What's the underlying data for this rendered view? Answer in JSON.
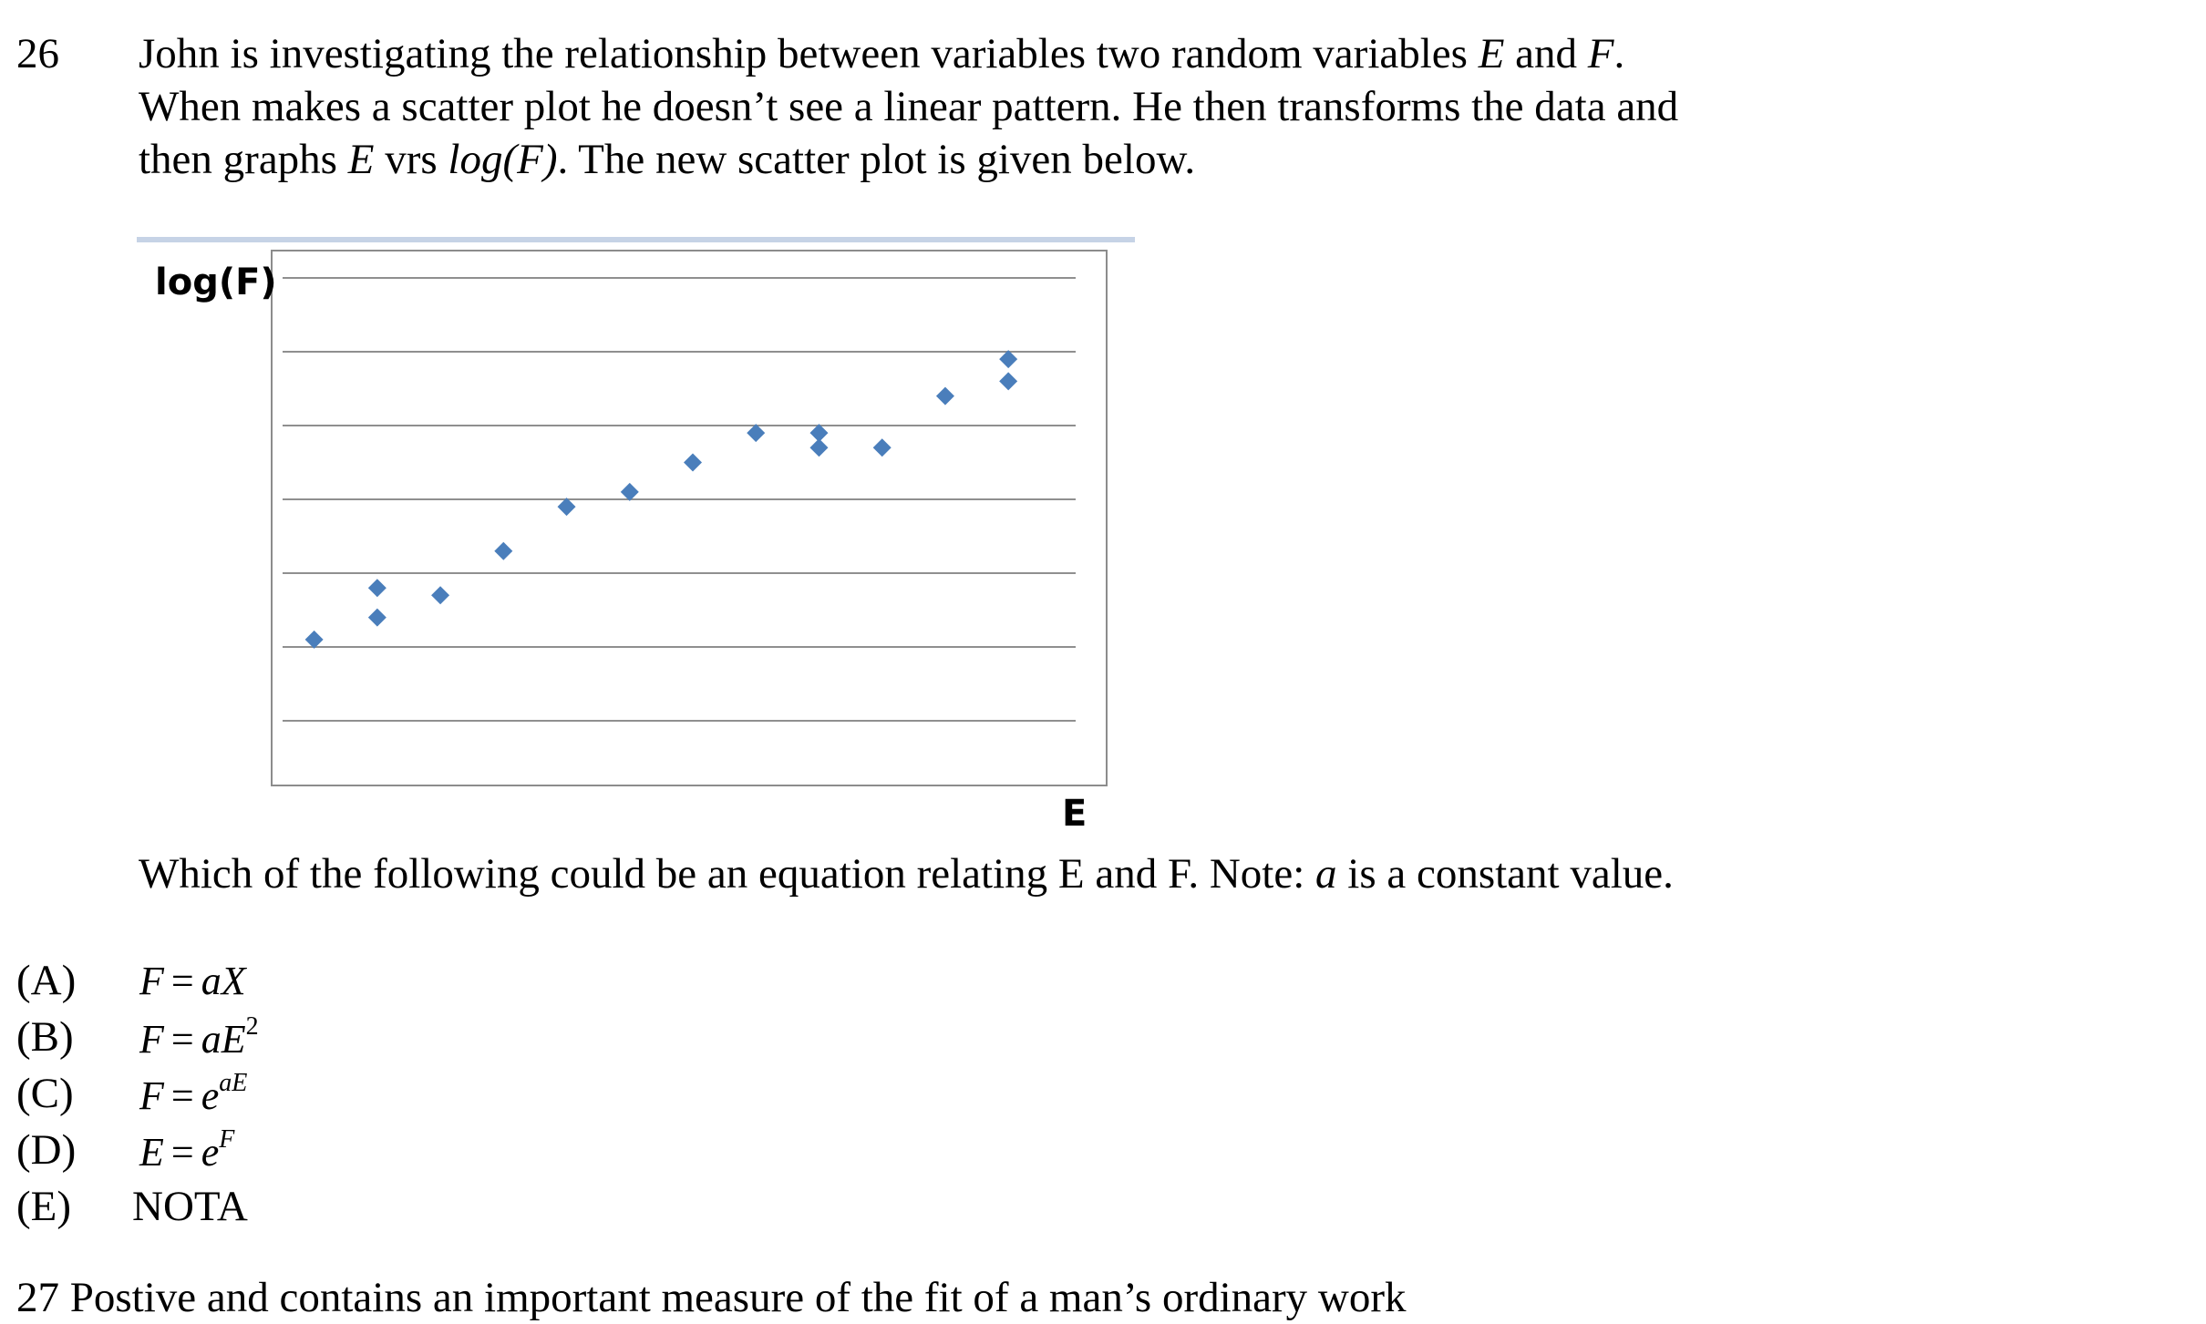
{
  "question": {
    "number": "26",
    "line1_a": "John is investigating the relationship between variables two random variables ",
    "line1_var1": "E",
    "line1_and": " and ",
    "line1_var2": "F",
    "line1_end": ".",
    "line2": "When makes a scatter plot he doesn’t see a linear pattern.  He then transforms the data and",
    "line3_a": "then graphs ",
    "line3_var": "E",
    "line3_vrs": " vrs ",
    "line3_log": "log(F)",
    "line3_end": ".  The new scatter plot is given below."
  },
  "chart_data": {
    "type": "scatter",
    "ylabel": "log(F)",
    "xlabel": "E",
    "grid": "horizontal",
    "gridline_count": 7,
    "xlim": [
      0,
      13
    ],
    "ylim": [
      0,
      7
    ],
    "marker": "diamond",
    "marker_color": "#4a7ebb",
    "points": [
      {
        "x": 0.5,
        "y": 2.1
      },
      {
        "x": 1.5,
        "y": 2.4
      },
      {
        "x": 1.5,
        "y": 2.8
      },
      {
        "x": 2.5,
        "y": 2.7
      },
      {
        "x": 3.5,
        "y": 3.3
      },
      {
        "x": 4.5,
        "y": 3.9
      },
      {
        "x": 5.5,
        "y": 4.1
      },
      {
        "x": 6.5,
        "y": 4.5
      },
      {
        "x": 7.5,
        "y": 4.9
      },
      {
        "x": 8.5,
        "y": 4.9
      },
      {
        "x": 8.5,
        "y": 4.7
      },
      {
        "x": 9.5,
        "y": 4.7
      },
      {
        "x": 10.5,
        "y": 5.4
      },
      {
        "x": 11.5,
        "y": 5.6
      },
      {
        "x": 11.5,
        "y": 5.9
      }
    ]
  },
  "followup": {
    "text_a": "Which of the following could be an equation relating E and F. Note: ",
    "text_var": "a",
    "text_end": " is a constant value."
  },
  "options": [
    {
      "letter": "(A)",
      "lhs": "F",
      "eq": "=",
      "rhs": "aX",
      "sup": ""
    },
    {
      "letter": "(B)",
      "lhs": "F",
      "eq": "=",
      "rhs": "aE",
      "sup": "2"
    },
    {
      "letter": "(C)",
      "lhs": "F",
      "eq": "=",
      "rhs": "e",
      "sup": "aE"
    },
    {
      "letter": "(D)",
      "lhs": "E",
      "eq": "=",
      "rhs": "e",
      "sup": "F"
    },
    {
      "letter": "(E)",
      "plain": "NOTA"
    }
  ],
  "next_question_partial": "27      Postive  and  contains  an  important  measure  of the fit  of  a  man’s  ordinary  work"
}
